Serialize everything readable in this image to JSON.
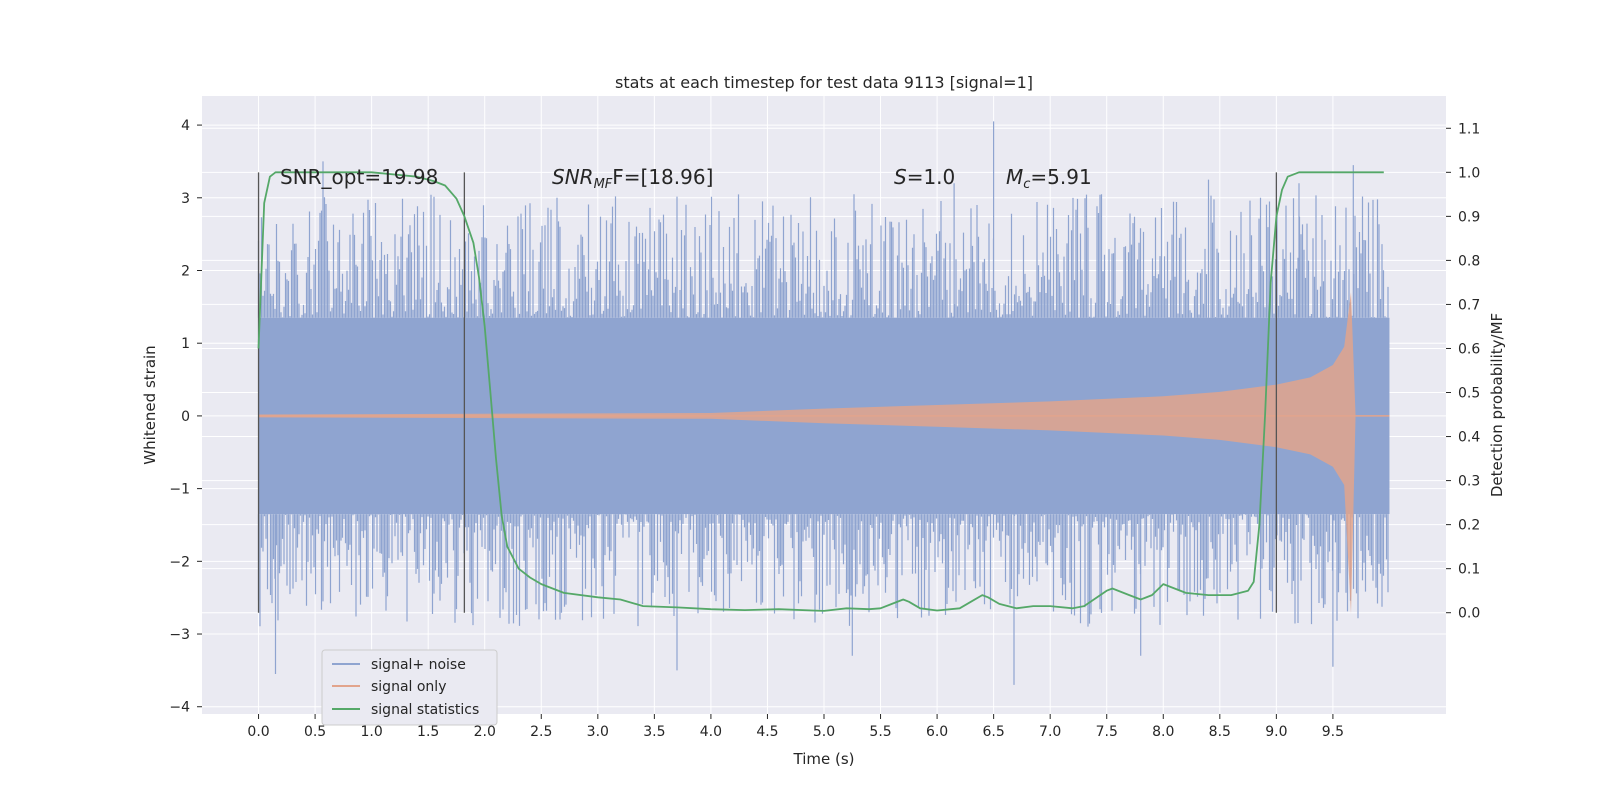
{
  "chart_data": {
    "type": "line",
    "title": "stats at each timestep for test data 9113 [signal=1]",
    "xlabel": "Time (s)",
    "ylabel": "Whitened strain",
    "ylabel_right": "Detection probability/MF",
    "xlim": [
      -0.5,
      10.5
    ],
    "ylim": [
      -4.1,
      4.4
    ],
    "ylim_right": [
      -0.23,
      1.1733
    ],
    "x_ticks": [
      "0.0",
      "0.5",
      "1.0",
      "1.5",
      "2.0",
      "2.5",
      "3.0",
      "3.5",
      "4.0",
      "4.5",
      "5.0",
      "5.5",
      "6.0",
      "6.5",
      "7.0",
      "7.5",
      "8.0",
      "8.5",
      "9.0",
      "9.5"
    ],
    "y_ticks": [
      "4",
      "3",
      "2",
      "1",
      "0",
      "−1",
      "−2",
      "−3",
      "−4"
    ],
    "y_ticks_right": [
      "1.1",
      "1.0",
      "0.9",
      "0.8",
      "0.7",
      "0.6",
      "0.5",
      "0.4",
      "0.3",
      "0.2",
      "0.1",
      "0.0"
    ],
    "grid": true,
    "legend_position": "lower-left",
    "annotations": {
      "snr_opt": "SNR_opt=19.98",
      "snr_mf_label": "SNR",
      "snr_mf_sub": "MF",
      "snr_mf_tail": "F=[18.96]",
      "s_label": "S",
      "s_tail": "=1.0",
      "mc_label": "M",
      "mc_sub": "c",
      "mc_tail": "=5.91"
    },
    "vertical_markers": [
      0.0,
      1.82,
      9.0
    ],
    "series": [
      {
        "name": "signal+ noise",
        "color": "#8fa4d0",
        "style": "noise band",
        "x_range": [
          0.0,
          10.0
        ],
        "typical_amplitude": 1.35,
        "peak_high": 4.05,
        "peak_low": -3.7
      },
      {
        "name": "signal only",
        "color": "#e2a48c",
        "style": "chirp envelope",
        "x_range": [
          0.0,
          9.7
        ],
        "x": [
          0.0,
          4.0,
          5.0,
          6.0,
          7.0,
          8.0,
          8.5,
          9.0,
          9.3,
          9.5,
          9.6,
          9.66,
          9.7
        ],
        "envelope": [
          0.02,
          0.04,
          0.1,
          0.15,
          0.2,
          0.27,
          0.33,
          0.43,
          0.53,
          0.7,
          0.95,
          1.7,
          0.02
        ]
      },
      {
        "name": "signal statistics",
        "color": "#55a868",
        "axis": "right",
        "x": [
          0.0,
          0.05,
          0.1,
          0.15,
          0.2,
          0.3,
          0.5,
          0.8,
          1.0,
          1.2,
          1.4,
          1.55,
          1.65,
          1.75,
          1.82,
          1.9,
          1.95,
          2.0,
          2.05,
          2.1,
          2.15,
          2.2,
          2.3,
          2.4,
          2.5,
          2.7,
          3.0,
          3.2,
          3.4,
          3.7,
          4.0,
          4.3,
          4.6,
          4.9,
          5.0,
          5.2,
          5.4,
          5.5,
          5.6,
          5.7,
          5.75,
          5.85,
          6.0,
          6.2,
          6.3,
          6.4,
          6.45,
          6.55,
          6.7,
          6.85,
          7.0,
          7.2,
          7.3,
          7.5,
          7.55,
          7.7,
          7.8,
          7.9,
          8.0,
          8.1,
          8.2,
          8.4,
          8.6,
          8.75,
          8.8,
          8.85,
          8.9,
          8.95,
          9.0,
          9.05,
          9.1,
          9.2,
          9.3,
          9.5,
          9.7,
          9.95
        ],
        "values": [
          0.6,
          0.93,
          0.99,
          1.0,
          1.0,
          1.0,
          1.0,
          1.0,
          1.0,
          0.995,
          0.99,
          0.98,
          0.97,
          0.94,
          0.9,
          0.84,
          0.76,
          0.65,
          0.5,
          0.35,
          0.22,
          0.15,
          0.1,
          0.08,
          0.065,
          0.045,
          0.035,
          0.03,
          0.015,
          0.012,
          0.008,
          0.006,
          0.008,
          0.005,
          0.004,
          0.01,
          0.008,
          0.01,
          0.02,
          0.03,
          0.025,
          0.01,
          0.005,
          0.01,
          0.025,
          0.04,
          0.035,
          0.02,
          0.01,
          0.015,
          0.015,
          0.01,
          0.015,
          0.05,
          0.055,
          0.04,
          0.03,
          0.04,
          0.065,
          0.055,
          0.045,
          0.04,
          0.04,
          0.05,
          0.07,
          0.2,
          0.45,
          0.75,
          0.9,
          0.96,
          0.99,
          1.0,
          1.0,
          1.0,
          1.0,
          1.0
        ]
      }
    ]
  }
}
